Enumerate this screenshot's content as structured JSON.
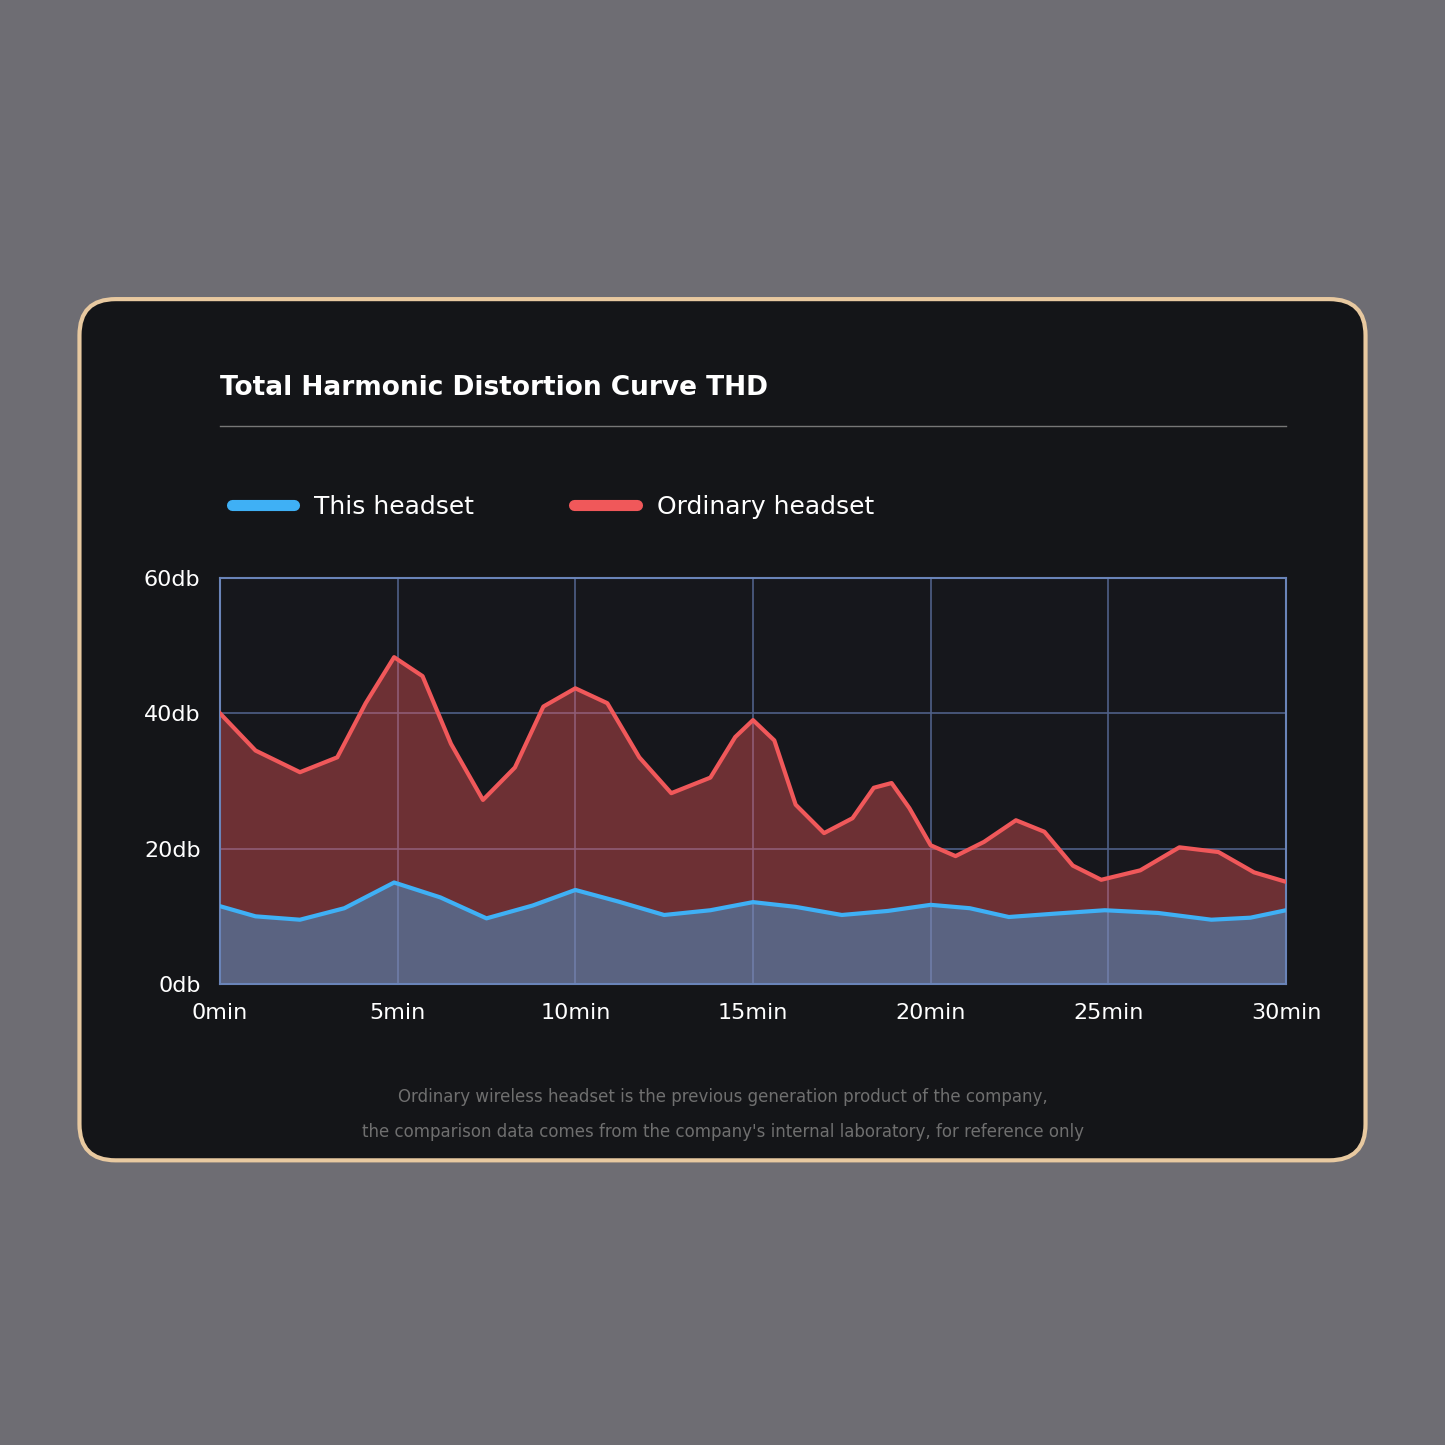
{
  "chart_data": {
    "type": "line",
    "title": "Total Harmonic Distortion Curve THD",
    "footnote": [
      "Ordinary wireless headset is the previous generation product of the company,",
      "the comparison data comes from the company's internal laboratory, for reference only"
    ],
    "series": [
      {
        "name": "This headset",
        "color": "#3fb0f5",
        "x": [
          0,
          1,
          2.25,
          3.5,
          4.9,
          6.2,
          7.5,
          8.8,
          10,
          11.2,
          12.5,
          13.8,
          15,
          16.2,
          17.5,
          18.8,
          20,
          21.1,
          22.2,
          23.5,
          24.9,
          26.4,
          27.9,
          29,
          30
        ],
        "values": [
          11.5,
          10.0,
          9.5,
          11.2,
          15.0,
          12.8,
          9.7,
          11.6,
          13.9,
          12.2,
          10.2,
          10.9,
          12.1,
          11.4,
          10.2,
          10.8,
          11.7,
          11.2,
          9.9,
          10.4,
          10.9,
          10.5,
          9.5,
          9.8,
          10.9
        ]
      },
      {
        "name": "Ordinary headset",
        "color": "#f0585a",
        "x": [
          0,
          1,
          2.25,
          3.3,
          4.1,
          4.9,
          5.7,
          6.5,
          7.4,
          8.3,
          9.1,
          10,
          10.9,
          11.8,
          12.7,
          13.8,
          14.5,
          15,
          15.6,
          16.2,
          17,
          17.8,
          18.4,
          18.9,
          19.4,
          20.0,
          20.7,
          21.5,
          22.4,
          23.2,
          24,
          24.8,
          25.9,
          27,
          28.1,
          29.1,
          30
        ],
        "values": [
          40.0,
          34.5,
          31.3,
          33.5,
          41.5,
          48.3,
          45.5,
          35.5,
          27.2,
          32.0,
          41.0,
          43.7,
          41.5,
          33.5,
          28.2,
          30.5,
          36.5,
          39.0,
          36.0,
          26.5,
          22.3,
          24.5,
          29.0,
          29.7,
          26.0,
          20.5,
          18.9,
          21.0,
          24.2,
          22.5,
          17.5,
          15.4,
          16.8,
          20.2,
          19.5,
          16.5,
          15.1
        ]
      }
    ],
    "xlim": [
      0,
      30
    ],
    "xticks": [
      {
        "value": 0,
        "label": "0min"
      },
      {
        "value": 5,
        "label": "5min"
      },
      {
        "value": 10,
        "label": "10min"
      },
      {
        "value": 15,
        "label": "15min"
      },
      {
        "value": 20,
        "label": "20min"
      },
      {
        "value": 25,
        "label": "25min"
      },
      {
        "value": 30,
        "label": "30min"
      }
    ],
    "ylim": [
      0,
      60
    ],
    "yticks": [
      {
        "value": 0,
        "label": "0db"
      },
      {
        "value": 20,
        "label": "20db"
      },
      {
        "value": 40,
        "label": "40db"
      },
      {
        "value": 60,
        "label": "60db"
      }
    ],
    "grid": true,
    "legend": "upper left"
  }
}
